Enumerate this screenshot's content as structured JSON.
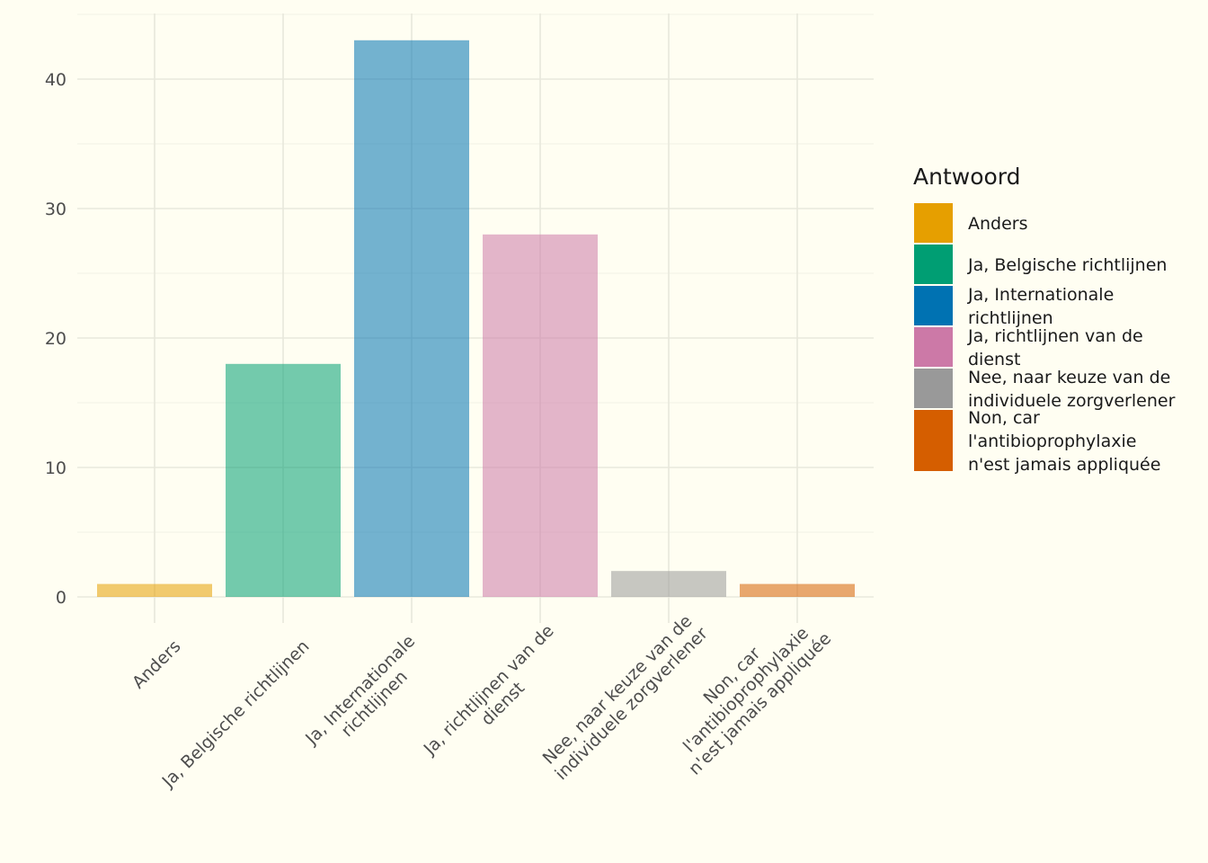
{
  "chart_data": {
    "type": "bar",
    "title": "",
    "xlabel": "",
    "ylabel": "",
    "ylim": [
      0,
      45
    ],
    "y_ticks": [
      0,
      10,
      20,
      30,
      40
    ],
    "grid": true,
    "legend_position": "right",
    "legend_title": "Antwoord",
    "categories": [
      "Anders",
      "Ja, Belgische richtlijnen",
      "Ja, Internationale richtlijnen",
      "Ja, richtlijnen van de dienst",
      "Nee, naar keuze van de individuele zorgverlener",
      "Non, car l'antibioprophylaxie n'est jamais appliquée"
    ],
    "tick_label_lines": [
      [
        "Anders"
      ],
      [
        "Ja, Belgische richtlijnen"
      ],
      [
        "Ja, Internationale",
        "richtlijnen"
      ],
      [
        "Ja, richtlijnen van de",
        "dienst"
      ],
      [
        "Nee, naar keuze van de",
        "individuele zorgverlener"
      ],
      [
        "Non, car",
        "l'antibioprophylaxie",
        "n'est jamais appliquée"
      ]
    ],
    "legend_label_lines": [
      [
        "Anders"
      ],
      [
        "Ja, Belgische richtlijnen"
      ],
      [
        "Ja, Internationale",
        "richtlijnen"
      ],
      [
        "Ja, richtlijnen van de",
        "dienst"
      ],
      [
        "Nee, naar keuze van de",
        "individuele zorgverlener"
      ],
      [
        "Non, car",
        "l'antibioprophylaxie",
        "n'est jamais appliquée"
      ]
    ],
    "values": [
      1,
      18,
      43,
      28,
      2,
      1
    ],
    "colors": [
      "#E69F00",
      "#009E73",
      "#0072B2",
      "#CC79A7",
      "#999999",
      "#D55E00"
    ]
  }
}
